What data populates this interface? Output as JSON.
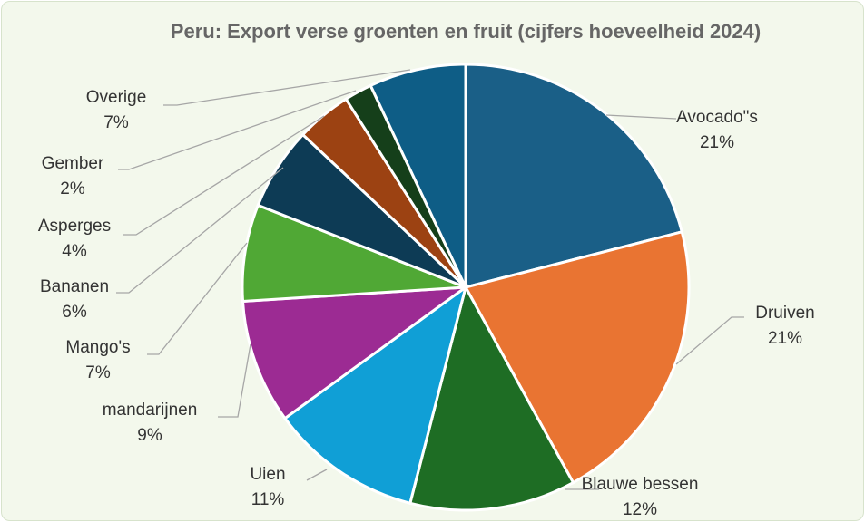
{
  "chart_data": {
    "type": "pie",
    "title": "Peru: Export verse groenten en fruit (cijfers hoeveelheid 2024)",
    "categories": [
      "Avocado\"s",
      "Druiven",
      "Blauwe bessen",
      "Uien",
      "mandarijnen",
      "Mango's",
      "Bananen",
      "Asperges",
      "Gember",
      "Overige"
    ],
    "values": [
      21,
      21,
      12,
      11,
      9,
      7,
      6,
      4,
      2,
      7
    ],
    "value_labels": [
      "21%",
      "21%",
      "12%",
      "11%",
      "9%",
      "7%",
      "6%",
      "4%",
      "2%",
      "7%"
    ],
    "colors": [
      "#1a5f87",
      "#e97432",
      "#1e6d24",
      "#109fd6",
      "#9c2b93",
      "#50a835",
      "#0d3b55",
      "#9c4212",
      "#153f1a",
      "#0e5d86"
    ]
  }
}
